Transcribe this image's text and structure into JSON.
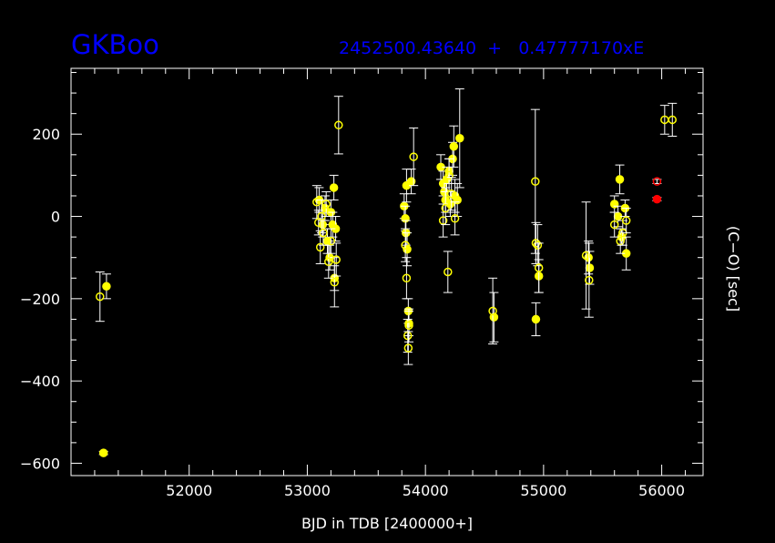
{
  "chart_data": {
    "type": "scatter",
    "title": "GKBoo",
    "ephemeris": "2452500.43640  +   0.47777170xE",
    "xlabel": "BJD in TDB [2400000+]",
    "ylabel": "(C−O) [sec]",
    "xlim": [
      51000,
      56350
    ],
    "ylim": [
      -630,
      360
    ],
    "x_ticks": [
      52000,
      53000,
      54000,
      55000,
      56000
    ],
    "x_tick_labels": [
      "52000",
      "53000",
      "54000",
      "55000",
      "56000"
    ],
    "y_ticks": [
      200,
      0,
      -200,
      -400,
      -600
    ],
    "y_tick_labels": [
      "200",
      "0",
      "−200",
      "−400",
      "−600"
    ],
    "grid": false,
    "colors": {
      "background": "#000000",
      "frame": "#ffffff",
      "title": "#0000ff",
      "points": "#ffff00",
      "points_alt": "#ff0000"
    },
    "series": [
      {
        "color": "#ffff00",
        "filled": true,
        "points": [
          {
            "x": 51275,
            "y": -575,
            "e": 4
          },
          {
            "x": 51300,
            "y": -170,
            "e": 30
          },
          {
            "x": 53100,
            "y": 40,
            "e": 30
          },
          {
            "x": 53130,
            "y": -20,
            "e": 30
          },
          {
            "x": 53150,
            "y": 20,
            "e": 30
          },
          {
            "x": 53170,
            "y": -60,
            "e": 30
          },
          {
            "x": 53190,
            "y": -100,
            "e": 30
          },
          {
            "x": 53200,
            "y": 10,
            "e": 30
          },
          {
            "x": 53215,
            "y": -20,
            "e": 30
          },
          {
            "x": 53225,
            "y": 70,
            "e": 30
          },
          {
            "x": 53230,
            "y": -150,
            "e": 30
          },
          {
            "x": 53240,
            "y": -30,
            "e": 30
          },
          {
            "x": 53820,
            "y": 25,
            "e": 30
          },
          {
            "x": 53830,
            "y": -5,
            "e": 30
          },
          {
            "x": 53835,
            "y": -40,
            "e": 30
          },
          {
            "x": 53840,
            "y": 75,
            "e": 40
          },
          {
            "x": 53845,
            "y": -80,
            "e": 40
          },
          {
            "x": 53855,
            "y": -230,
            "e": 30
          },
          {
            "x": 53860,
            "y": -260,
            "e": 30
          },
          {
            "x": 53880,
            "y": 85,
            "e": 30
          },
          {
            "x": 54130,
            "y": 120,
            "e": 30
          },
          {
            "x": 54150,
            "y": 80,
            "e": 30
          },
          {
            "x": 54160,
            "y": 60,
            "e": 30
          },
          {
            "x": 54170,
            "y": 40,
            "e": 30
          },
          {
            "x": 54180,
            "y": 90,
            "e": 30
          },
          {
            "x": 54200,
            "y": 110,
            "e": 30
          },
          {
            "x": 54210,
            "y": 30,
            "e": 30
          },
          {
            "x": 54230,
            "y": 140,
            "e": 40
          },
          {
            "x": 54240,
            "y": 170,
            "e": 50
          },
          {
            "x": 54250,
            "y": 50,
            "e": 40
          },
          {
            "x": 54270,
            "y": 40,
            "e": 40
          },
          {
            "x": 54290,
            "y": 190,
            "e": 120
          },
          {
            "x": 54580,
            "y": -245,
            "e": 60
          },
          {
            "x": 54935,
            "y": -250,
            "e": 40
          },
          {
            "x": 54960,
            "y": -145,
            "e": 40
          },
          {
            "x": 55380,
            "y": -100,
            "e": 40
          },
          {
            "x": 55390,
            "y": -125,
            "e": 40
          },
          {
            "x": 55600,
            "y": 30,
            "e": 20
          },
          {
            "x": 55630,
            "y": 0,
            "e": 25
          },
          {
            "x": 55645,
            "y": 90,
            "e": 35
          },
          {
            "x": 55660,
            "y": -50,
            "e": 20
          },
          {
            "x": 55690,
            "y": 20,
            "e": 20
          },
          {
            "x": 55700,
            "y": -90,
            "e": 40
          }
        ]
      },
      {
        "color": "#ffff00",
        "filled": false,
        "points": [
          {
            "x": 51245,
            "y": -195,
            "e": 60
          },
          {
            "x": 53080,
            "y": 35,
            "e": 40
          },
          {
            "x": 53095,
            "y": -15,
            "e": 30
          },
          {
            "x": 53110,
            "y": -75,
            "e": 40
          },
          {
            "x": 53120,
            "y": 0,
            "e": 40
          },
          {
            "x": 53135,
            "y": -40,
            "e": 30
          },
          {
            "x": 53160,
            "y": 30,
            "e": 30
          },
          {
            "x": 53180,
            "y": -110,
            "e": 40
          },
          {
            "x": 53200,
            "y": -60,
            "e": 30
          },
          {
            "x": 53230,
            "y": -160,
            "e": 60
          },
          {
            "x": 53245,
            "y": -105,
            "e": 40
          },
          {
            "x": 53265,
            "y": 222,
            "e": 70
          },
          {
            "x": 53830,
            "y": -70,
            "e": 40
          },
          {
            "x": 53840,
            "y": -150,
            "e": 50
          },
          {
            "x": 53850,
            "y": -290,
            "e": 40
          },
          {
            "x": 53855,
            "y": -320,
            "e": 40
          },
          {
            "x": 53860,
            "y": -265,
            "e": 40
          },
          {
            "x": 53900,
            "y": 145,
            "e": 70
          },
          {
            "x": 54150,
            "y": -10,
            "e": 40
          },
          {
            "x": 54170,
            "y": 20,
            "e": 40
          },
          {
            "x": 54190,
            "y": -135,
            "e": 50
          },
          {
            "x": 54200,
            "y": 100,
            "e": 40
          },
          {
            "x": 54220,
            "y": 55,
            "e": 40
          },
          {
            "x": 54250,
            "y": -5,
            "e": 40
          },
          {
            "x": 54570,
            "y": -230,
            "e": 80
          },
          {
            "x": 54930,
            "y": 85,
            "e": 175
          },
          {
            "x": 54935,
            "y": -65,
            "e": 50
          },
          {
            "x": 54950,
            "y": -70,
            "e": 50
          },
          {
            "x": 54960,
            "y": -125,
            "e": 60
          },
          {
            "x": 55360,
            "y": -95,
            "e": 130
          },
          {
            "x": 55385,
            "y": -155,
            "e": 90
          },
          {
            "x": 55600,
            "y": -20,
            "e": 30
          },
          {
            "x": 55650,
            "y": -60,
            "e": 30
          },
          {
            "x": 55670,
            "y": -40,
            "e": 30
          },
          {
            "x": 55700,
            "y": -10,
            "e": 30
          },
          {
            "x": 56025,
            "y": 235,
            "e": 35
          },
          {
            "x": 56090,
            "y": 235,
            "e": 40
          }
        ]
      },
      {
        "color": "#ff0000",
        "filled": true,
        "points": [
          {
            "x": 55960,
            "y": 42,
            "e": 4
          }
        ]
      },
      {
        "color": "#ff0000",
        "filled": false,
        "points": [
          {
            "x": 55960,
            "y": 85,
            "e": 5
          }
        ]
      }
    ]
  }
}
